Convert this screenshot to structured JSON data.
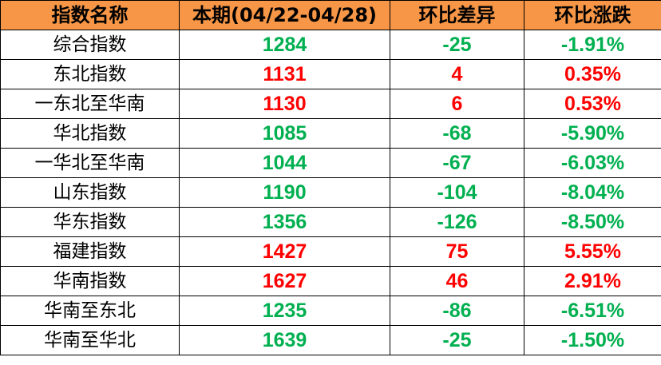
{
  "header": [
    "指数名称",
    "本期(04/22-04/28)",
    "环比差异",
    "环比涨跌"
  ],
  "colors": {
    "header_bg": "#F79646",
    "up": "#FF0000",
    "down": "#00B050"
  },
  "rows": [
    {
      "name": "综合指数",
      "value": "1284",
      "diff": "-25",
      "pct": "-1.91%",
      "trend": "down"
    },
    {
      "name": "东北指数",
      "value": "1131",
      "diff": "4",
      "pct": "0.35%",
      "trend": "up"
    },
    {
      "name": "一东北至华南",
      "value": "1130",
      "diff": "6",
      "pct": "0.53%",
      "trend": "up"
    },
    {
      "name": "华北指数",
      "value": "1085",
      "diff": "-68",
      "pct": "-5.90%",
      "trend": "down"
    },
    {
      "name": "一华北至华南",
      "value": "1044",
      "diff": "-67",
      "pct": "-6.03%",
      "trend": "down"
    },
    {
      "name": "山东指数",
      "value": "1190",
      "diff": "-104",
      "pct": "-8.04%",
      "trend": "down"
    },
    {
      "name": "华东指数",
      "value": "1356",
      "diff": "-126",
      "pct": "-8.50%",
      "trend": "down"
    },
    {
      "name": "福建指数",
      "value": "1427",
      "diff": "75",
      "pct": "5.55%",
      "trend": "up"
    },
    {
      "name": "华南指数",
      "value": "1627",
      "diff": "46",
      "pct": "2.91%",
      "trend": "up"
    },
    {
      "name": "华南至东北",
      "value": "1235",
      "diff": "-86",
      "pct": "-6.51%",
      "trend": "down"
    },
    {
      "name": "华南至华北",
      "value": "1639",
      "diff": "-25",
      "pct": "-1.50%",
      "trend": "down"
    }
  ]
}
